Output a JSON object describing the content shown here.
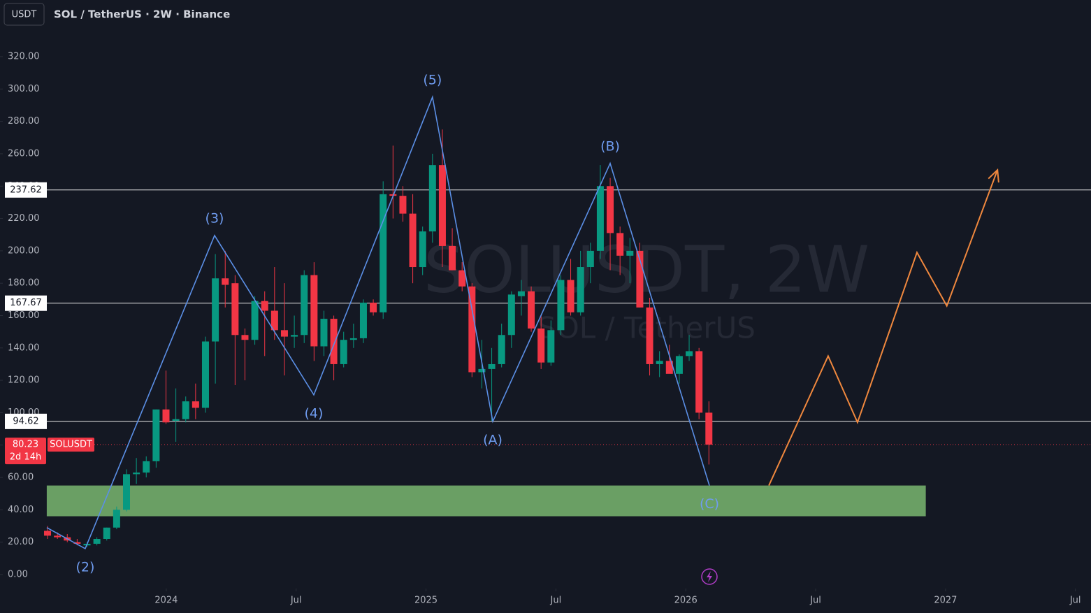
{
  "chart_data": {
    "type": "candlestick",
    "title": "SOL / TetherUS · 2W · Binance",
    "currency": "USDT",
    "watermark": "SOLUSDT, 2W",
    "watermark_subtitle": "SOL / TetherUS",
    "xlim": [
      2023.36,
      2027.56
    ],
    "ylim": [
      -7.8,
      355
    ],
    "xticks": [
      2024,
      {
        "value": 2024.5,
        "label": "Jul"
      },
      2025,
      {
        "value": 2025.5,
        "label": "Jul"
      },
      2026,
      {
        "value": 2026.5,
        "label": "Jul"
      },
      2027,
      {
        "value": 2027.5,
        "label": "Jul"
      }
    ],
    "yticks": [
      {
        "value": 0,
        "label": "0.00"
      },
      {
        "value": 20,
        "label": "20.00"
      },
      {
        "value": 40,
        "label": "40.00"
      },
      {
        "value": 60,
        "label": "60.00"
      },
      {
        "value": 80,
        "label": "80.00"
      },
      {
        "value": 100,
        "label": "100.00"
      },
      {
        "value": 120,
        "label": "120.00"
      },
      {
        "value": 140,
        "label": "140.00"
      },
      {
        "value": 160,
        "label": "160.00"
      },
      {
        "value": 180,
        "label": "180.00"
      },
      {
        "value": 200,
        "label": "200.00"
      },
      {
        "value": 220,
        "label": "220.00"
      },
      {
        "value": 240,
        "label": "240.00"
      },
      {
        "value": 260,
        "label": "260.00"
      },
      {
        "value": 280,
        "label": "280.00"
      },
      {
        "value": 300,
        "label": "300.00"
      },
      {
        "value": 320,
        "label": "320.00"
      }
    ],
    "up_color": "#089981",
    "down_color": "#f23645",
    "candles": {
      "x": [
        2023.543,
        2023.581,
        2023.619,
        2023.657,
        2023.695,
        2023.733,
        2023.771,
        2023.809,
        2023.847,
        2023.885,
        2023.923,
        2023.961,
        2023.999,
        2024.037,
        2024.075,
        2024.113,
        2024.151,
        2024.189,
        2024.227,
        2024.265,
        2024.303,
        2024.341,
        2024.379,
        2024.417,
        2024.455,
        2024.493,
        2024.531,
        2024.569,
        2024.607,
        2024.645,
        2024.683,
        2024.721,
        2024.759,
        2024.797,
        2024.835,
        2024.873,
        2024.911,
        2024.949,
        2024.987,
        2025.025,
        2025.063,
        2025.101,
        2025.139,
        2025.177,
        2025.215,
        2025.253,
        2025.291,
        2025.329,
        2025.367,
        2025.405,
        2025.443,
        2025.481,
        2025.519,
        2025.557,
        2025.595,
        2025.633,
        2025.671,
        2025.709,
        2025.747,
        2025.785,
        2025.823,
        2025.861,
        2025.899,
        2025.937,
        2025.975,
        2026.013,
        2026.051,
        2026.089
      ],
      "open": [
        27,
        24,
        23,
        20,
        18,
        19,
        22,
        29,
        40,
        62,
        63,
        70,
        102,
        95,
        96,
        107,
        103,
        144,
        183,
        180,
        148,
        145,
        169,
        163,
        151,
        147,
        148,
        185,
        141,
        158,
        130,
        145,
        146,
        168,
        162,
        235,
        234,
        223,
        190,
        212,
        253,
        203,
        188,
        178,
        125,
        127,
        130,
        148,
        172,
        175,
        152,
        131,
        151,
        182,
        162,
        190,
        200,
        240,
        211,
        197,
        200,
        165,
        130,
        132,
        124,
        135,
        138,
        100
      ],
      "high": [
        30,
        26,
        25,
        22,
        20,
        23,
        29,
        42,
        65,
        72,
        73,
        102,
        126,
        115,
        110,
        118,
        147,
        198,
        200,
        185,
        152,
        172,
        175,
        190,
        180,
        160,
        188,
        193,
        163,
        160,
        150,
        155,
        170,
        170,
        243,
        265,
        240,
        235,
        215,
        260,
        275,
        214,
        193,
        180,
        145,
        140,
        155,
        175,
        182,
        178,
        160,
        157,
        185,
        195,
        200,
        205,
        253,
        245,
        215,
        208,
        205,
        171,
        138,
        142,
        136,
        148,
        140,
        107
      ],
      "low": [
        22,
        22,
        20,
        18,
        17,
        18,
        21,
        28,
        39,
        56,
        60,
        66,
        93,
        82,
        94,
        96,
        100,
        118,
        165,
        117,
        120,
        142,
        135,
        145,
        123,
        140,
        143,
        132,
        135,
        120,
        128,
        140,
        143,
        160,
        158,
        220,
        218,
        180,
        185,
        205,
        190,
        188,
        175,
        122,
        115,
        95,
        128,
        140,
        160,
        150,
        127,
        129,
        148,
        160,
        160,
        180,
        195,
        188,
        185,
        180,
        165,
        123,
        122,
        125,
        118,
        132,
        96,
        68
      ],
      "close": [
        24,
        23,
        21,
        19,
        19,
        22,
        29,
        40,
        62,
        63,
        70,
        102,
        94,
        96,
        107,
        103,
        144,
        183,
        179,
        148,
        145,
        169,
        163,
        151,
        147,
        148,
        185,
        141,
        158,
        130,
        145,
        146,
        168,
        162,
        235,
        234,
        223,
        190,
        212,
        253,
        203,
        188,
        178,
        125,
        127,
        130,
        148,
        173,
        175,
        152,
        131,
        151,
        182,
        162,
        190,
        200,
        240,
        211,
        197,
        200,
        165,
        130,
        132,
        124,
        135,
        138,
        100,
        80.23
      ]
    },
    "levels": [
      237.62,
      167.67,
      94.62
    ],
    "price": {
      "value": 80.23,
      "symbol": "SOLUSDT",
      "countdown": "2d 14h"
    },
    "zone": {
      "color": "#6a9f64",
      "x": [
        2023.54,
        2026.924
      ],
      "y": [
        36,
        55
      ]
    },
    "wave": {
      "color": "#5b8fe6",
      "x": [
        2023.54,
        2023.688,
        2024.186,
        2024.568,
        2025.025,
        2025.257,
        2025.709,
        2026.091
      ],
      "y": [
        29,
        16,
        209.5,
        111,
        295,
        94.6,
        254,
        55
      ],
      "labels": [
        null,
        "(2)",
        "(3)",
        "(4)",
        "(5)",
        "(A)",
        "(B)",
        "(C)"
      ]
    },
    "projection": {
      "color": "#f0883e",
      "x": [
        2026.32,
        2026.548,
        2026.661,
        2026.89,
        2027.005,
        2027.2
      ],
      "y": [
        55,
        135,
        94,
        199,
        166,
        250
      ]
    }
  }
}
